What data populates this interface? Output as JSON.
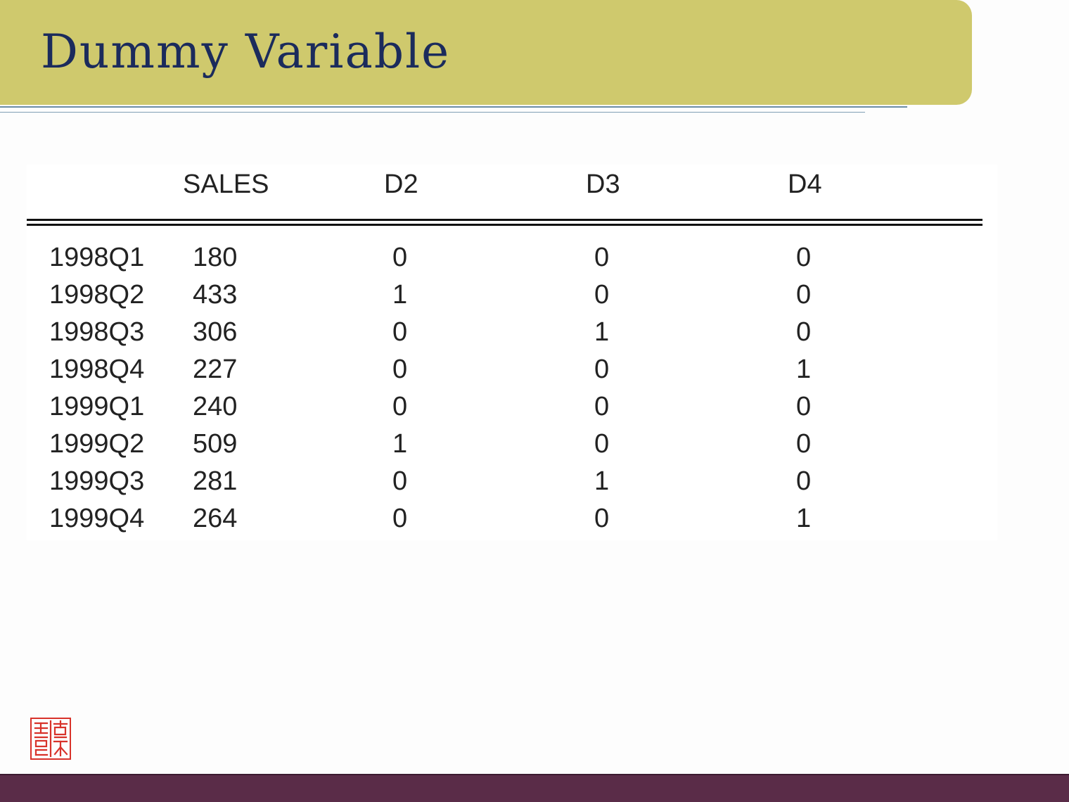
{
  "slide": {
    "title": "Dummy Variable"
  },
  "table": {
    "columns": [
      "",
      "SALES",
      "D2",
      "D3",
      "D4"
    ],
    "rows": [
      {
        "period": "1998Q1",
        "sales": "180",
        "d2": "0",
        "d3": "0",
        "d4": "0"
      },
      {
        "period": "1998Q2",
        "sales": "433",
        "d2": "1",
        "d3": "0",
        "d4": "0"
      },
      {
        "period": "1998Q3",
        "sales": "306",
        "d2": "0",
        "d3": "1",
        "d4": "0"
      },
      {
        "period": "1998Q4",
        "sales": "227",
        "d2": "0",
        "d3": "0",
        "d4": "1"
      },
      {
        "period": "1999Q1",
        "sales": "240",
        "d2": "0",
        "d3": "0",
        "d4": "0"
      },
      {
        "period": "1999Q2",
        "sales": "509",
        "d2": "1",
        "d3": "0",
        "d4": "0"
      },
      {
        "period": "1999Q3",
        "sales": "281",
        "d2": "0",
        "d3": "1",
        "d4": "0"
      },
      {
        "period": "1999Q4",
        "sales": "264",
        "d2": "0",
        "d3": "0",
        "d4": "1"
      }
    ]
  },
  "colors": {
    "banner": "#cfc96d",
    "title_text": "#1b2b5c",
    "footer": "#5a2c48",
    "seal": "#d8322a"
  },
  "icons": {
    "seal": "red-seal-stamp-icon"
  }
}
